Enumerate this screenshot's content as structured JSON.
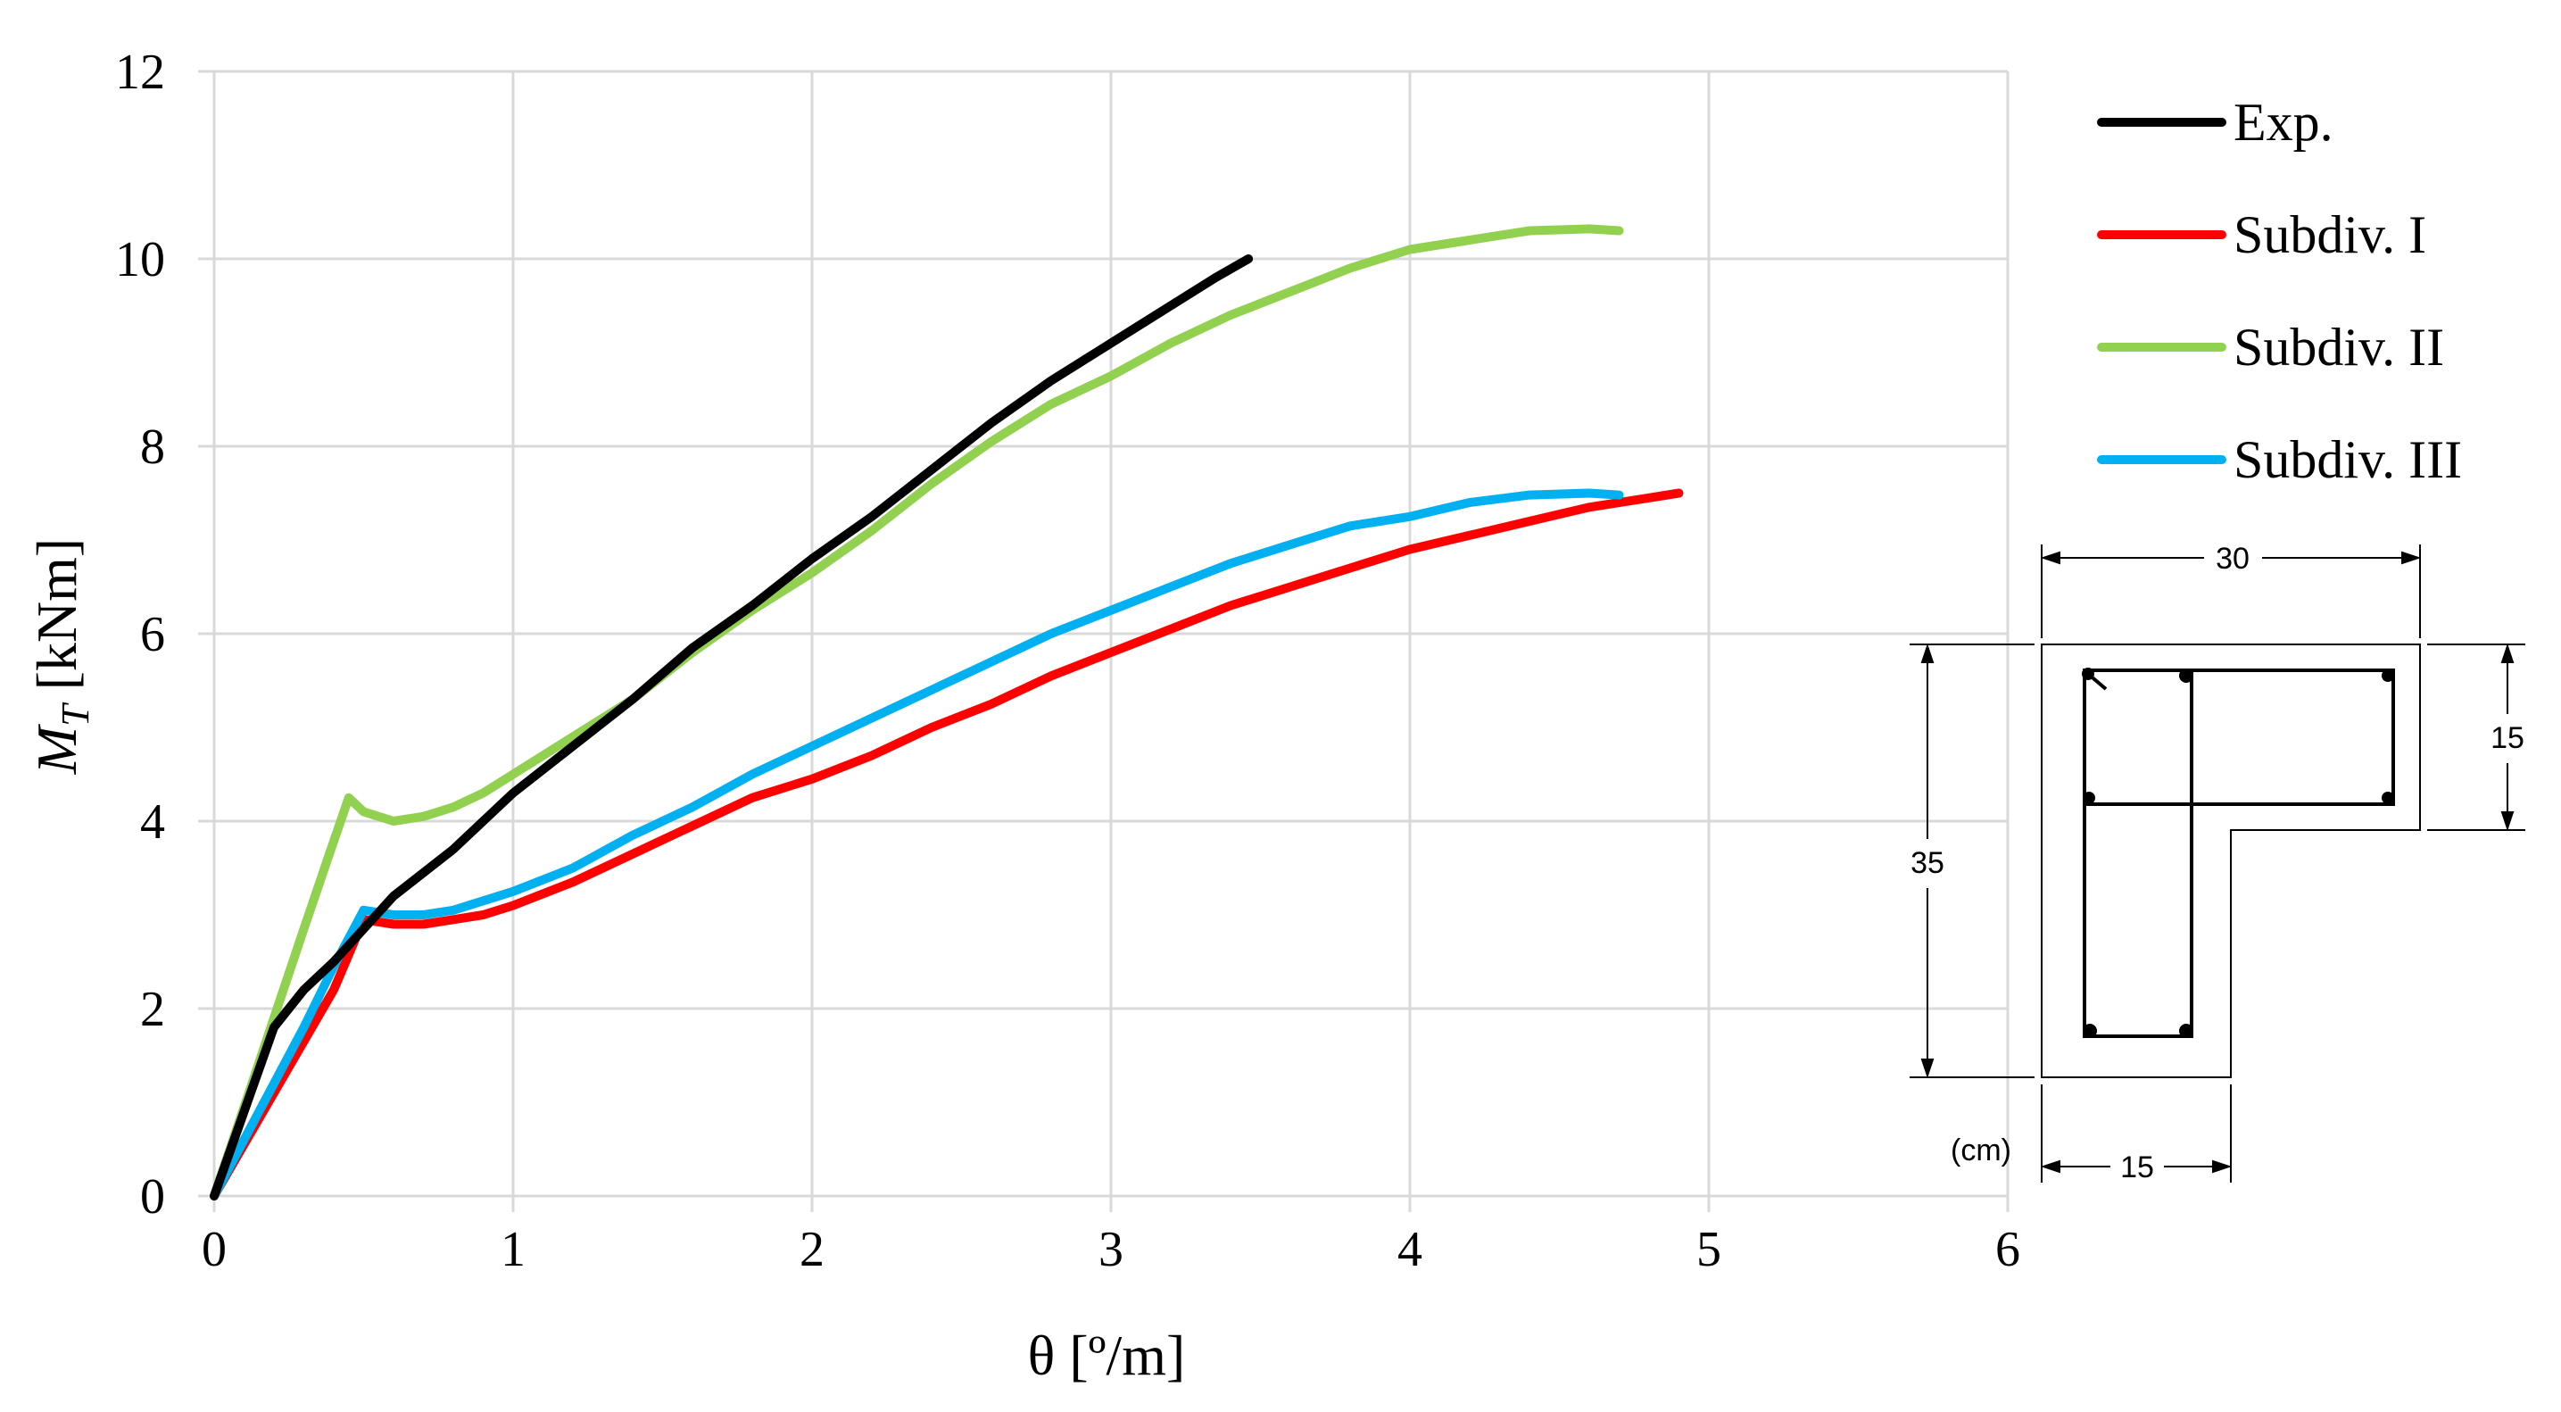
{
  "chart_data": {
    "type": "line",
    "xlabel": "θ [º/m]",
    "ylabel_main": "M",
    "ylabel_sub": "T",
    "ylabel_rest": " [kNm]",
    "xlim": [
      0,
      6
    ],
    "ylim": [
      0,
      12
    ],
    "x_ticks": [
      "0",
      "1",
      "2",
      "3",
      "4",
      "5",
      "6"
    ],
    "y_ticks": [
      "0",
      "2",
      "4",
      "6",
      "8",
      "10",
      "12"
    ],
    "grid": true,
    "legend_position": "top-right",
    "series": [
      {
        "name": "Exp.",
        "color": "#000000",
        "points": [
          [
            0,
            0
          ],
          [
            0.1,
            0.9
          ],
          [
            0.2,
            1.8
          ],
          [
            0.3,
            2.2
          ],
          [
            0.4,
            2.5
          ],
          [
            0.5,
            2.85
          ],
          [
            0.6,
            3.2
          ],
          [
            0.7,
            3.45
          ],
          [
            0.8,
            3.7
          ],
          [
            0.9,
            4.0
          ],
          [
            1.0,
            4.3
          ],
          [
            1.2,
            4.8
          ],
          [
            1.4,
            5.3
          ],
          [
            1.6,
            5.85
          ],
          [
            1.8,
            6.3
          ],
          [
            2.0,
            6.8
          ],
          [
            2.2,
            7.25
          ],
          [
            2.4,
            7.75
          ],
          [
            2.6,
            8.25
          ],
          [
            2.8,
            8.7
          ],
          [
            3.0,
            9.1
          ],
          [
            3.2,
            9.5
          ],
          [
            3.35,
            9.8
          ],
          [
            3.46,
            10.0
          ]
        ]
      },
      {
        "name": "Subdiv. I",
        "color": "#ff0000",
        "points": [
          [
            0,
            0
          ],
          [
            0.1,
            0.55
          ],
          [
            0.2,
            1.1
          ],
          [
            0.3,
            1.65
          ],
          [
            0.4,
            2.2
          ],
          [
            0.5,
            2.95
          ],
          [
            0.6,
            2.9
          ],
          [
            0.7,
            2.9
          ],
          [
            0.8,
            2.95
          ],
          [
            0.9,
            3.0
          ],
          [
            1.0,
            3.1
          ],
          [
            1.2,
            3.35
          ],
          [
            1.4,
            3.65
          ],
          [
            1.6,
            3.95
          ],
          [
            1.8,
            4.25
          ],
          [
            2.0,
            4.45
          ],
          [
            2.2,
            4.7
          ],
          [
            2.4,
            5.0
          ],
          [
            2.6,
            5.25
          ],
          [
            2.8,
            5.55
          ],
          [
            3.0,
            5.8
          ],
          [
            3.2,
            6.05
          ],
          [
            3.4,
            6.3
          ],
          [
            3.6,
            6.5
          ],
          [
            3.8,
            6.7
          ],
          [
            4.0,
            6.9
          ],
          [
            4.2,
            7.05
          ],
          [
            4.4,
            7.2
          ],
          [
            4.6,
            7.35
          ],
          [
            4.8,
            7.45
          ],
          [
            4.9,
            7.5
          ]
        ]
      },
      {
        "name": "Subdiv. II",
        "color": "#92d050",
        "points": [
          [
            0,
            0
          ],
          [
            0.1,
            0.95
          ],
          [
            0.2,
            1.9
          ],
          [
            0.3,
            2.85
          ],
          [
            0.38,
            3.6
          ],
          [
            0.45,
            4.25
          ],
          [
            0.5,
            4.1
          ],
          [
            0.6,
            4.0
          ],
          [
            0.7,
            4.05
          ],
          [
            0.8,
            4.15
          ],
          [
            0.9,
            4.3
          ],
          [
            1.0,
            4.5
          ],
          [
            1.2,
            4.9
          ],
          [
            1.4,
            5.3
          ],
          [
            1.6,
            5.8
          ],
          [
            1.8,
            6.25
          ],
          [
            2.0,
            6.65
          ],
          [
            2.2,
            7.1
          ],
          [
            2.4,
            7.6
          ],
          [
            2.6,
            8.05
          ],
          [
            2.8,
            8.45
          ],
          [
            3.0,
            8.75
          ],
          [
            3.2,
            9.1
          ],
          [
            3.4,
            9.4
          ],
          [
            3.6,
            9.65
          ],
          [
            3.8,
            9.9
          ],
          [
            4.0,
            10.1
          ],
          [
            4.2,
            10.2
          ],
          [
            4.4,
            10.3
          ],
          [
            4.6,
            10.32
          ],
          [
            4.7,
            10.3
          ]
        ]
      },
      {
        "name": "Subdiv. III",
        "color": "#00b0f0",
        "points": [
          [
            0,
            0
          ],
          [
            0.1,
            0.6
          ],
          [
            0.2,
            1.2
          ],
          [
            0.3,
            1.8
          ],
          [
            0.4,
            2.45
          ],
          [
            0.5,
            3.05
          ],
          [
            0.6,
            3.0
          ],
          [
            0.7,
            3.0
          ],
          [
            0.8,
            3.05
          ],
          [
            0.9,
            3.15
          ],
          [
            1.0,
            3.25
          ],
          [
            1.2,
            3.5
          ],
          [
            1.4,
            3.85
          ],
          [
            1.6,
            4.15
          ],
          [
            1.8,
            4.5
          ],
          [
            2.0,
            4.8
          ],
          [
            2.2,
            5.1
          ],
          [
            2.4,
            5.4
          ],
          [
            2.6,
            5.7
          ],
          [
            2.8,
            6.0
          ],
          [
            3.0,
            6.25
          ],
          [
            3.2,
            6.5
          ],
          [
            3.4,
            6.75
          ],
          [
            3.6,
            6.95
          ],
          [
            3.8,
            7.15
          ],
          [
            4.0,
            7.25
          ],
          [
            4.2,
            7.4
          ],
          [
            4.4,
            7.48
          ],
          [
            4.6,
            7.5
          ],
          [
            4.7,
            7.48
          ]
        ]
      }
    ]
  },
  "section_drawing": {
    "dim_top": "30",
    "dim_right": "15",
    "dim_left": "35",
    "dim_bottom": "15",
    "units": "(cm)"
  }
}
